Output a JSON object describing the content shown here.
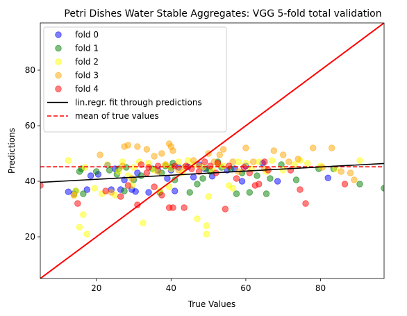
{
  "chart_data": {
    "type": "scatter",
    "title": "Petri Dishes Water Stable Aggregates: VGG 5-fold total validation",
    "xlabel": "True Values",
    "ylabel": "Predictions",
    "xlim": [
      5,
      97
    ],
    "ylim": [
      5,
      97
    ],
    "xticks": [
      20,
      40,
      60,
      80
    ],
    "yticks": [
      20,
      40,
      60,
      80
    ],
    "grid": false,
    "legend_placement": "top-left",
    "series": [
      {
        "name": "fold 0",
        "color": "#0000ff",
        "points": [
          [
            12.5,
            36.2
          ],
          [
            14,
            35.5
          ],
          [
            17.5,
            37
          ],
          [
            18.5,
            42
          ],
          [
            20.5,
            42.5
          ],
          [
            23,
            45.8
          ],
          [
            24,
            37
          ],
          [
            25,
            44.5
          ],
          [
            26.5,
            37
          ],
          [
            27.5,
            40.5
          ],
          [
            29.5,
            37
          ],
          [
            30.5,
            36.3
          ],
          [
            31,
            43
          ],
          [
            34,
            36
          ],
          [
            36.5,
            44
          ],
          [
            39,
            41
          ],
          [
            40,
            44
          ],
          [
            41,
            36.5
          ],
          [
            42,
            45
          ],
          [
            44.5,
            45.2
          ],
          [
            46,
            41.5
          ],
          [
            47.5,
            46
          ],
          [
            49,
            44.5
          ],
          [
            51,
            41.8
          ],
          [
            55,
            44
          ],
          [
            57,
            44.5
          ],
          [
            59,
            40
          ],
          [
            60,
            45.5
          ],
          [
            64.5,
            46.5
          ],
          [
            68.5,
            40
          ],
          [
            82,
            41.2
          ]
        ]
      },
      {
        "name": "fold 1",
        "color": "#008000",
        "points": [
          [
            14.5,
            36.5
          ],
          [
            15.5,
            43.5
          ],
          [
            16,
            44.5
          ],
          [
            16.5,
            35.5
          ],
          [
            20,
            43.5
          ],
          [
            23.5,
            44
          ],
          [
            25.5,
            42.5
          ],
          [
            26,
            44.5
          ],
          [
            27.5,
            36.5
          ],
          [
            28,
            45
          ],
          [
            30,
            40.5
          ],
          [
            32,
            42
          ],
          [
            35,
            44.5
          ],
          [
            37,
            36
          ],
          [
            37.5,
            43
          ],
          [
            38.5,
            45.5
          ],
          [
            40,
            45
          ],
          [
            40.5,
            46.5
          ],
          [
            41,
            40.5
          ],
          [
            45,
            36
          ],
          [
            47,
            39
          ],
          [
            48.5,
            41
          ],
          [
            49.5,
            44.5
          ],
          [
            50.5,
            43.5
          ],
          [
            52.5,
            47
          ],
          [
            53.5,
            45
          ],
          [
            56,
            44.5
          ],
          [
            57.5,
            35.5
          ],
          [
            59,
            43
          ],
          [
            61,
            36
          ],
          [
            63,
            42
          ],
          [
            65.5,
            35.5
          ],
          [
            66.5,
            41
          ],
          [
            69.5,
            46
          ],
          [
            73.5,
            40.5
          ],
          [
            79.5,
            44.5
          ],
          [
            83.5,
            44.5
          ],
          [
            90.5,
            39
          ],
          [
            97,
            37.5
          ]
        ]
      },
      {
        "name": "fold 2",
        "color": "#ffff00",
        "points": [
          [
            12.5,
            47.5
          ],
          [
            14,
            35
          ],
          [
            14.5,
            36.5
          ],
          [
            15.5,
            23.5
          ],
          [
            16.5,
            28
          ],
          [
            17,
            45
          ],
          [
            17.5,
            21
          ],
          [
            19.5,
            37.5
          ],
          [
            21.5,
            35.5
          ],
          [
            23,
            46
          ],
          [
            25,
            35
          ],
          [
            26,
            43.5
          ],
          [
            27,
            47
          ],
          [
            28.5,
            42
          ],
          [
            29.5,
            38.5
          ],
          [
            30,
            45
          ],
          [
            31.5,
            47
          ],
          [
            32.5,
            25
          ],
          [
            34,
            46.5
          ],
          [
            35.5,
            44
          ],
          [
            37,
            36.5
          ],
          [
            38.5,
            46
          ],
          [
            39.5,
            38
          ],
          [
            40,
            44.5
          ],
          [
            42,
            47
          ],
          [
            43,
            43
          ],
          [
            44.5,
            47.5
          ],
          [
            46,
            46
          ],
          [
            47,
            26.5
          ],
          [
            48.5,
            45
          ],
          [
            49.5,
            21
          ],
          [
            49.5,
            24
          ],
          [
            50,
            34.5
          ],
          [
            51,
            44
          ],
          [
            52.5,
            46
          ],
          [
            54,
            45.5
          ],
          [
            55.5,
            38.5
          ],
          [
            56.5,
            37.5
          ],
          [
            58,
            47
          ],
          [
            60,
            46.5
          ],
          [
            61.5,
            44.5
          ],
          [
            63.5,
            47
          ],
          [
            65.5,
            43.5
          ],
          [
            67,
            47.5
          ],
          [
            70,
            44
          ],
          [
            73,
            46
          ],
          [
            74.5,
            47.5
          ],
          [
            76.5,
            46.5
          ],
          [
            80,
            45.5
          ],
          [
            84,
            44.5
          ],
          [
            90.5,
            47.5
          ]
        ]
      },
      {
        "name": "fold 3",
        "color": "#ffa500",
        "points": [
          [
            14,
            35
          ],
          [
            21,
            49.5
          ],
          [
            24,
            36
          ],
          [
            27,
            45.5
          ],
          [
            27.5,
            52.5
          ],
          [
            28.5,
            53
          ],
          [
            29.5,
            41
          ],
          [
            31,
            52.5
          ],
          [
            33.5,
            51.5
          ],
          [
            35.5,
            49
          ],
          [
            36.5,
            43.5
          ],
          [
            37.5,
            50
          ],
          [
            38.5,
            46
          ],
          [
            39.5,
            53.5
          ],
          [
            40,
            52.5
          ],
          [
            40.5,
            51
          ],
          [
            42,
            44
          ],
          [
            43.5,
            45
          ],
          [
            46,
            47.5
          ],
          [
            47.5,
            45.5
          ],
          [
            50,
            50
          ],
          [
            51.5,
            47
          ],
          [
            53,
            49.5
          ],
          [
            54,
            51.5
          ],
          [
            56.5,
            47
          ],
          [
            58,
            43.5
          ],
          [
            60,
            52
          ],
          [
            62,
            47
          ],
          [
            65,
            44.5
          ],
          [
            67.5,
            51
          ],
          [
            70,
            49.5
          ],
          [
            71.5,
            47
          ],
          [
            74,
            48
          ],
          [
            78,
            52
          ],
          [
            80.5,
            45
          ],
          [
            83,
            52
          ],
          [
            85.5,
            43.5
          ],
          [
            88,
            43
          ],
          [
            89,
            40.5
          ]
        ]
      },
      {
        "name": "fold 4",
        "color": "#ff0000",
        "points": [
          [
            5,
            38.5
          ],
          [
            15,
            32
          ],
          [
            22.5,
            36.5
          ],
          [
            26.5,
            34.5
          ],
          [
            28.5,
            38.5
          ],
          [
            31,
            31.5
          ],
          [
            32,
            46
          ],
          [
            33.5,
            43
          ],
          [
            34,
            45
          ],
          [
            35.5,
            38
          ],
          [
            36.5,
            45.5
          ],
          [
            37.5,
            35
          ],
          [
            39.5,
            30.5
          ],
          [
            40.5,
            30.5
          ],
          [
            41,
            45.5
          ],
          [
            43.5,
            30.5
          ],
          [
            44,
            45.5
          ],
          [
            45.5,
            44.5
          ],
          [
            47.5,
            43.5
          ],
          [
            49,
            47
          ],
          [
            50.5,
            45.5
          ],
          [
            52,
            43
          ],
          [
            52.5,
            46.5
          ],
          [
            54.5,
            30
          ],
          [
            55.5,
            45.5
          ],
          [
            57.5,
            41
          ],
          [
            59.5,
            45
          ],
          [
            61,
            43
          ],
          [
            62.5,
            38.5
          ],
          [
            63.5,
            39
          ],
          [
            65,
            47
          ],
          [
            66,
            44
          ],
          [
            72,
            44
          ],
          [
            74.5,
            37
          ],
          [
            76,
            32
          ],
          [
            86.5,
            39
          ]
        ]
      }
    ],
    "regression": {
      "name": "lin.regr. fit through predictions",
      "color": "#000000",
      "points": [
        [
          5,
          39.6
        ],
        [
          97,
          46.4
        ]
      ]
    },
    "mean_line": {
      "name": "mean of true values",
      "color": "#ff0000",
      "value": 45.2
    },
    "identity_line": {
      "color": "#ff0000",
      "points": [
        [
          5,
          5
        ],
        [
          97,
          97
        ]
      ]
    }
  }
}
